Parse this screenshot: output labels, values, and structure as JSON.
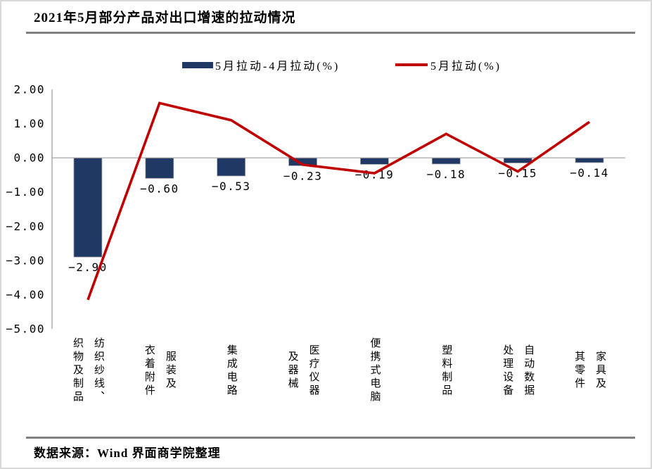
{
  "page": {
    "title": "2021年5月部分产品对出口增速的拉动情况",
    "source_note": "数据来源：Wind 界面商学院整理"
  },
  "chart_data": {
    "type": "combo-bar-line",
    "title": "2021年5月部分产品对出口增速的拉动情况",
    "categories": [
      [
        "纺织纱线、",
        "织物及制品"
      ],
      [
        "服装及",
        "衣着附件"
      ],
      [
        "集成电路"
      ],
      [
        "医疗仪器",
        "及器械"
      ],
      [
        "便携式电脑"
      ],
      [
        "塑料制品"
      ],
      [
        "自动数据",
        "处理设备"
      ],
      [
        "家具及",
        "其零件"
      ]
    ],
    "series": [
      {
        "name": "5月拉动-4月拉动(%)",
        "type": "bar",
        "color": "#1f3864",
        "values": [
          -2.9,
          -0.6,
          -0.53,
          -0.23,
          -0.19,
          -0.18,
          -0.15,
          -0.14
        ]
      },
      {
        "name": "5月拉动(%)",
        "type": "line",
        "color": "#c00000",
        "values": [
          -4.15,
          1.6,
          1.1,
          -0.2,
          -0.45,
          0.7,
          -0.4,
          1.05
        ]
      }
    ],
    "y_axis": {
      "min": -5,
      "max": 2,
      "ticks": [
        2,
        1,
        0,
        -1,
        -2,
        -3,
        -4,
        -5
      ],
      "tick_format": "0.00"
    },
    "ylim": [
      -5,
      2
    ],
    "legend_position": "top",
    "gridlines": "zero-line-only",
    "bar_value_labels": "outside-end",
    "colors": {
      "axis": "#808080",
      "zero_line": "#a6a6a6",
      "bar_outline": "#a6a6a6",
      "rule": "#808080",
      "frame": "#d9d9d9",
      "text": "#000000"
    }
  }
}
